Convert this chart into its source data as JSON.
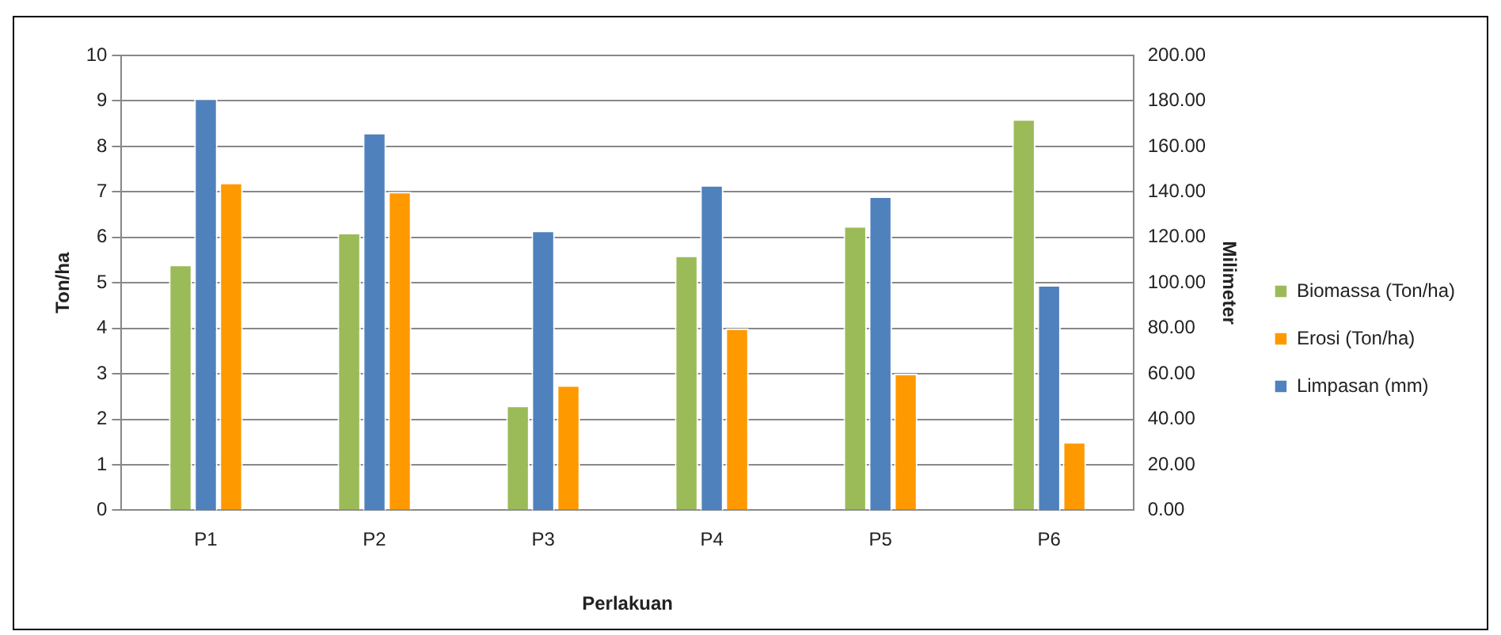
{
  "chart_data": {
    "type": "bar",
    "categories": [
      "P1",
      "P2",
      "P3",
      "P4",
      "P5",
      "P6"
    ],
    "xlabel": "Perlakuan",
    "ylabel": "Ton/ha",
    "y2label": "Milimeter",
    "series": [
      {
        "name": "Biomassa (Ton/ha)",
        "color": "#9bbb59",
        "values": [
          5.4,
          6.1,
          2.3,
          5.6,
          6.25,
          8.6
        ]
      },
      {
        "name": "Limpasan (mm)",
        "color": "#4f81bd",
        "axis": "y2",
        "values": [
          181,
          166,
          123,
          143,
          138,
          99
        ]
      },
      {
        "name": "Erosi (Ton/ha)",
        "color": "#ff9900",
        "values": [
          7.2,
          7.0,
          2.75,
          4.0,
          3.0,
          1.5
        ]
      }
    ],
    "ylim": [
      0,
      10
    ],
    "yticks": [
      0,
      1,
      2,
      3,
      4,
      5,
      6,
      7,
      8,
      9,
      10
    ],
    "y2lim": [
      0,
      200
    ],
    "y2ticks": [
      {
        "value": 0,
        "label": "0.00"
      },
      {
        "value": 20,
        "label": "20.00"
      },
      {
        "value": 40,
        "label": "40.00"
      },
      {
        "value": 60,
        "label": "60.00"
      },
      {
        "value": 80,
        "label": "80.00"
      },
      {
        "value": 100,
        "label": "100.00"
      },
      {
        "value": 120,
        "label": "120.00"
      },
      {
        "value": 140,
        "label": "140.00"
      },
      {
        "value": 160,
        "label": "160.00"
      },
      {
        "value": 180,
        "label": "180.00"
      },
      {
        "value": 200,
        "label": "200.00"
      }
    ],
    "grid": "y",
    "legend": "right"
  }
}
